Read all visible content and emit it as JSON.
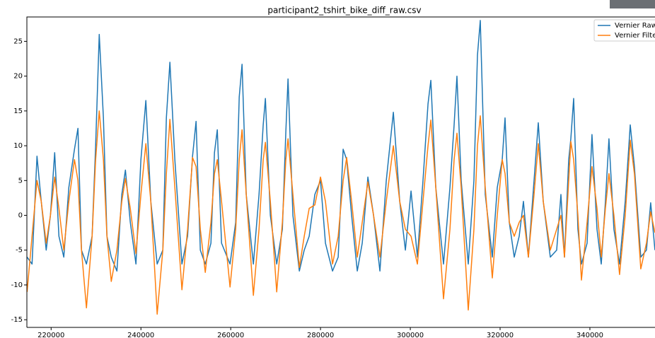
{
  "chart_data": {
    "type": "line",
    "title": "participant2_tshirt_bike_diff_raw.csv",
    "x": [
      214650,
      215750,
      216850,
      217800,
      218900,
      219840,
      220790,
      221730,
      222830,
      223940,
      225200,
      225980,
      226770,
      227870,
      229130,
      229920,
      230710,
      231650,
      232440,
      233390,
      234650,
      235750,
      236540,
      237640,
      238900,
      240000,
      241100,
      242200,
      243620,
      244880,
      245670,
      246460,
      247560,
      249130,
      250390,
      251500,
      252280,
      253230,
      254330,
      255590,
      256380,
      257010,
      257950,
      259840,
      261100,
      261890,
      262520,
      263460,
      265040,
      266300,
      267240,
      267720,
      268820,
      270240,
      271500,
      272280,
      272760,
      273860,
      275280,
      276380,
      277480,
      278740,
      280000,
      281100,
      282680,
      283940,
      285040,
      285830,
      286930,
      288190,
      289290,
      290550,
      291810,
      293230,
      294650,
      296220,
      297640,
      298900,
      300160,
      301580,
      302830,
      303940,
      304570,
      305670,
      307400,
      308820,
      309760,
      310390,
      311340,
      312910,
      314170,
      314960,
      315590,
      316690,
      318270,
      319370,
      320470,
      321100,
      322050,
      323150,
      324250,
      325200,
      326300,
      327560,
      328500,
      329610,
      331180,
      332600,
      333540,
      334330,
      335280,
      335750,
      336380,
      337320,
      338110,
      339370,
      340470,
      341580,
      342520,
      343460,
      344250,
      345350,
      346610,
      347870,
      348980,
      349920,
      351340,
      352600,
      353540,
      354490
    ],
    "series": [
      {
        "name": "Vernier Raw",
        "color": "#1f77b4",
        "values": [
          -6,
          -7,
          8.5,
          2,
          -5,
          0,
          9,
          -3,
          -6,
          4,
          9.5,
          12.5,
          -5,
          -7,
          -3,
          10,
          26,
          14,
          -3,
          -6,
          -8,
          3,
          6.5,
          -1,
          -7,
          8,
          16.5,
          2,
          -7,
          -5,
          14,
          22,
          8,
          -7,
          -3,
          8.5,
          13.5,
          -5,
          -7,
          -4,
          9,
          12.3,
          -4,
          -7,
          -1,
          17,
          21.7,
          3,
          -7,
          3,
          13,
          16.8,
          0,
          -7,
          -2,
          12,
          19.6,
          0,
          -8,
          -5,
          -3,
          3,
          5,
          -4,
          -8,
          -6,
          9.5,
          8,
          0,
          -8,
          -4,
          5.5,
          0,
          -8,
          5,
          14.8,
          2,
          -5,
          3.5,
          -6,
          5,
          16,
          19.4,
          4,
          -7,
          4,
          13,
          20,
          5,
          -7,
          5,
          23,
          28,
          3,
          -6,
          4,
          8,
          14,
          -1,
          -6,
          -3,
          2,
          -6,
          5,
          13.3,
          2,
          -6,
          -5,
          3,
          -6,
          8,
          11,
          16.8,
          -2,
          -7,
          -4,
          11.6,
          -2,
          -7,
          2,
          11,
          -2,
          -7,
          2,
          13,
          7,
          -6,
          -5,
          1.8,
          -5
        ]
      },
      {
        "name": "Vernier Filtered",
        "color": "#ff7f0e",
        "values": [
          -11,
          -3,
          5,
          2,
          -4,
          0,
          5.5,
          1,
          -5,
          2,
          8,
          5,
          -5,
          -13.3,
          -3,
          8,
          15,
          8,
          -3,
          -9.5,
          -5,
          2,
          5.3,
          1,
          -5.5,
          3,
          10.3,
          2,
          -14.2,
          -5,
          6,
          13.8,
          4,
          -10.7,
          -2,
          8.3,
          7,
          -2,
          -8.2,
          -1,
          6,
          8,
          2,
          -10.3,
          -2,
          8,
          12.3,
          3,
          -11.5,
          -2,
          8,
          10.5,
          2,
          -11,
          -1,
          8,
          11,
          3,
          -7.5,
          -3,
          1,
          1.5,
          5.5,
          2,
          -7,
          -3,
          5,
          8.3,
          2,
          -6,
          -1,
          4.8,
          0,
          -6,
          2,
          10,
          2,
          -2,
          -3,
          -7,
          2,
          10,
          13.7,
          4,
          -12,
          -2,
          8,
          11.8,
          4,
          -13.6,
          -2,
          10,
          14.3,
          4,
          -9,
          0,
          8,
          6,
          -1,
          -3,
          -1,
          0,
          -6,
          3,
          10.3,
          2,
          -5,
          -2,
          0,
          -6,
          5,
          10.6,
          8,
          0,
          -9.3,
          -1,
          7,
          1,
          -6,
          1,
          6,
          0,
          -8.5,
          0,
          10.8,
          6,
          -7.7,
          -4,
          0.5,
          -2.5
        ]
      }
    ],
    "xlim": [
      214600,
      354500
    ],
    "ylim": [
      -16.1,
      28.5
    ],
    "xticks": [
      220000,
      240000,
      260000,
      280000,
      300000,
      320000,
      340000
    ],
    "yticks": [
      -15,
      -10,
      -5,
      0,
      5,
      10,
      15,
      20,
      25
    ],
    "legend": "upper right"
  }
}
